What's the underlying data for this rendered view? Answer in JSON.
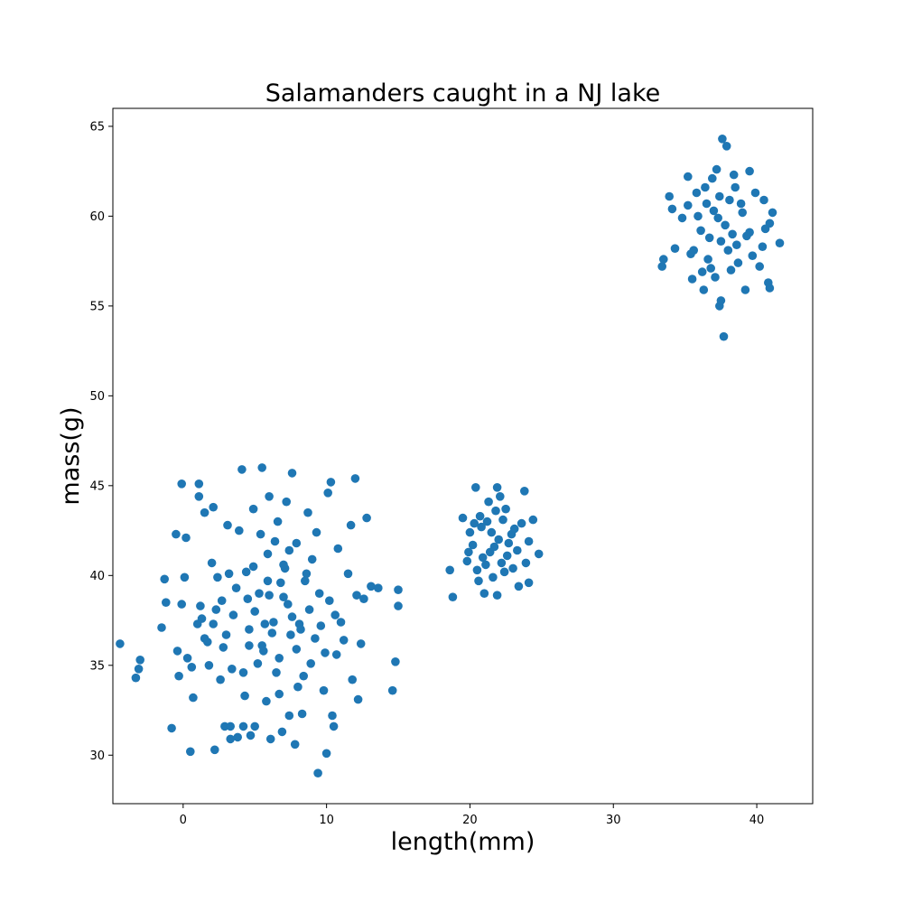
{
  "chart_data": {
    "type": "scatter",
    "title": "Salamanders caught in a NJ lake",
    "xlabel": "length(mm)",
    "ylabel": "mass(g)",
    "xlim": [
      -4.9,
      43.9
    ],
    "ylim": [
      27.3,
      66.0
    ],
    "xticks": [
      0,
      10,
      20,
      30,
      40
    ],
    "yticks": [
      30,
      35,
      40,
      45,
      50,
      55,
      60,
      65
    ],
    "grid": false,
    "marker_color": "#1f77b4",
    "series": [
      {
        "values": [
          [
            -4.4,
            36.2
          ],
          [
            -3.3,
            34.3
          ],
          [
            -3.0,
            35.3
          ],
          [
            -3.1,
            34.8
          ],
          [
            -1.5,
            37.1
          ],
          [
            -1.3,
            39.8
          ],
          [
            -1.2,
            38.5
          ],
          [
            -0.5,
            42.3
          ],
          [
            -0.8,
            31.5
          ],
          [
            -0.4,
            35.8
          ],
          [
            -0.3,
            34.4
          ],
          [
            -0.1,
            38.4
          ],
          [
            -0.1,
            45.1
          ],
          [
            0.1,
            39.9
          ],
          [
            0.2,
            42.1
          ],
          [
            0.3,
            35.4
          ],
          [
            0.5,
            30.2
          ],
          [
            0.7,
            33.2
          ],
          [
            0.6,
            34.9
          ],
          [
            1.0,
            37.3
          ],
          [
            1.1,
            44.4
          ],
          [
            1.1,
            45.1
          ],
          [
            1.3,
            37.6
          ],
          [
            1.2,
            38.3
          ],
          [
            1.5,
            43.5
          ],
          [
            1.5,
            36.5
          ],
          [
            1.8,
            35.0
          ],
          [
            2.0,
            40.7
          ],
          [
            2.1,
            37.3
          ],
          [
            2.1,
            43.8
          ],
          [
            2.2,
            30.3
          ],
          [
            2.4,
            39.9
          ],
          [
            2.6,
            34.2
          ],
          [
            2.7,
            38.6
          ],
          [
            2.8,
            36.0
          ],
          [
            2.9,
            31.6
          ],
          [
            3.1,
            42.8
          ],
          [
            3.3,
            30.9
          ],
          [
            3.3,
            31.6
          ],
          [
            3.4,
            34.8
          ],
          [
            3.5,
            37.8
          ],
          [
            3.8,
            31.0
          ],
          [
            3.9,
            42.5
          ],
          [
            4.1,
            45.9
          ],
          [
            4.2,
            31.6
          ],
          [
            4.3,
            33.3
          ],
          [
            4.4,
            40.2
          ],
          [
            4.5,
            38.7
          ],
          [
            4.6,
            36.1
          ],
          [
            4.7,
            31.1
          ],
          [
            4.9,
            43.7
          ],
          [
            5.0,
            31.6
          ],
          [
            5.3,
            39.0
          ],
          [
            5.4,
            42.3
          ],
          [
            5.5,
            46.0
          ],
          [
            5.6,
            35.8
          ],
          [
            5.8,
            33.0
          ],
          [
            5.9,
            41.2
          ],
          [
            6.0,
            44.4
          ],
          [
            6.1,
            30.9
          ],
          [
            6.3,
            37.4
          ],
          [
            6.6,
            43.0
          ],
          [
            6.7,
            35.4
          ],
          [
            6.9,
            31.3
          ],
          [
            7.0,
            38.8
          ],
          [
            7.1,
            40.4
          ],
          [
            7.2,
            44.1
          ],
          [
            7.4,
            32.2
          ],
          [
            7.5,
            36.7
          ],
          [
            7.6,
            45.7
          ],
          [
            7.8,
            30.6
          ],
          [
            7.9,
            41.8
          ],
          [
            8.1,
            37.3
          ],
          [
            8.3,
            32.3
          ],
          [
            8.5,
            39.7
          ],
          [
            8.7,
            43.5
          ],
          [
            8.9,
            35.1
          ],
          [
            9.0,
            40.9
          ],
          [
            9.3,
            42.4
          ],
          [
            9.4,
            29.0
          ],
          [
            9.6,
            37.2
          ],
          [
            9.8,
            33.6
          ],
          [
            10.0,
            30.1
          ],
          [
            10.1,
            44.6
          ],
          [
            10.3,
            45.2
          ],
          [
            10.4,
            32.2
          ],
          [
            10.5,
            31.6
          ],
          [
            10.6,
            37.8
          ],
          [
            10.8,
            41.5
          ],
          [
            11.2,
            36.4
          ],
          [
            11.5,
            40.1
          ],
          [
            11.7,
            42.8
          ],
          [
            11.8,
            34.2
          ],
          [
            12.0,
            45.4
          ],
          [
            12.2,
            33.1
          ],
          [
            12.4,
            36.2
          ],
          [
            12.6,
            38.7
          ],
          [
            12.8,
            43.2
          ],
          [
            13.1,
            39.4
          ],
          [
            13.6,
            39.3
          ],
          [
            14.6,
            33.6
          ],
          [
            14.8,
            35.2
          ],
          [
            15.0,
            39.2
          ],
          [
            15.0,
            38.3
          ],
          [
            5.0,
            38.0
          ],
          [
            6.2,
            36.8
          ],
          [
            7.3,
            38.4
          ],
          [
            8.2,
            37.0
          ],
          [
            6.8,
            39.6
          ],
          [
            5.7,
            37.3
          ],
          [
            7.9,
            35.9
          ],
          [
            8.8,
            38.1
          ],
          [
            4.6,
            37.0
          ],
          [
            6.5,
            34.6
          ],
          [
            9.2,
            36.5
          ],
          [
            3.7,
            39.3
          ],
          [
            10.2,
            38.6
          ],
          [
            7.0,
            40.6
          ],
          [
            5.2,
            35.1
          ],
          [
            8.4,
            34.4
          ],
          [
            6.0,
            38.9
          ],
          [
            3.0,
            36.7
          ],
          [
            9.9,
            35.7
          ],
          [
            7.6,
            37.7
          ],
          [
            4.9,
            40.5
          ],
          [
            11.0,
            37.4
          ],
          [
            2.3,
            38.1
          ],
          [
            6.7,
            33.4
          ],
          [
            8.6,
            40.1
          ],
          [
            5.5,
            36.1
          ],
          [
            7.4,
            41.4
          ],
          [
            9.5,
            39.0
          ],
          [
            4.2,
            34.6
          ],
          [
            10.7,
            35.6
          ],
          [
            6.4,
            41.9
          ],
          [
            3.2,
            40.1
          ],
          [
            8.0,
            33.8
          ],
          [
            5.9,
            39.7
          ],
          [
            12.1,
            38.9
          ],
          [
            1.7,
            36.3
          ],
          [
            20.2,
            41.7
          ],
          [
            20.8,
            42.7
          ],
          [
            21.4,
            41.3
          ],
          [
            22.0,
            42.0
          ],
          [
            22.6,
            41.1
          ],
          [
            21.1,
            40.6
          ],
          [
            22.3,
            43.1
          ],
          [
            20.5,
            40.3
          ],
          [
            21.8,
            43.6
          ],
          [
            22.9,
            42.3
          ],
          [
            23.3,
            41.4
          ],
          [
            20.0,
            42.4
          ],
          [
            21.6,
            39.9
          ],
          [
            22.4,
            40.2
          ],
          [
            23.6,
            42.9
          ],
          [
            19.8,
            40.8
          ],
          [
            20.7,
            43.3
          ],
          [
            21.3,
            44.1
          ],
          [
            22.1,
            44.4
          ],
          [
            23.0,
            40.4
          ],
          [
            24.1,
            41.9
          ],
          [
            19.5,
            43.2
          ],
          [
            24.4,
            43.1
          ],
          [
            24.8,
            41.2
          ],
          [
            18.6,
            40.3
          ],
          [
            18.8,
            38.8
          ],
          [
            20.4,
            44.9
          ],
          [
            21.9,
            44.9
          ],
          [
            21.0,
            39.0
          ],
          [
            21.9,
            38.9
          ],
          [
            23.4,
            39.4
          ],
          [
            23.8,
            44.7
          ],
          [
            24.1,
            39.6
          ],
          [
            21.5,
            42.4
          ],
          [
            22.7,
            41.8
          ],
          [
            20.9,
            41.0
          ],
          [
            22.2,
            40.7
          ],
          [
            21.2,
            43.0
          ],
          [
            23.1,
            42.6
          ],
          [
            19.9,
            41.3
          ],
          [
            20.6,
            39.7
          ],
          [
            23.9,
            40.7
          ],
          [
            21.7,
            41.6
          ],
          [
            22.5,
            43.7
          ],
          [
            20.3,
            42.9
          ],
          [
            36.1,
            59.2
          ],
          [
            37.0,
            60.3
          ],
          [
            37.8,
            59.5
          ],
          [
            38.6,
            58.4
          ],
          [
            36.6,
            57.6
          ],
          [
            37.4,
            61.1
          ],
          [
            38.9,
            60.7
          ],
          [
            35.6,
            58.1
          ],
          [
            39.5,
            59.1
          ],
          [
            36.4,
            61.6
          ],
          [
            38.2,
            57.0
          ],
          [
            37.1,
            56.6
          ],
          [
            39.9,
            61.3
          ],
          [
            35.2,
            60.6
          ],
          [
            40.4,
            58.3
          ],
          [
            34.8,
            59.9
          ],
          [
            36.9,
            62.1
          ],
          [
            38.4,
            62.3
          ],
          [
            40.9,
            59.6
          ],
          [
            34.3,
            58.2
          ],
          [
            37.6,
            64.3
          ],
          [
            37.9,
            63.9
          ],
          [
            37.7,
            53.3
          ],
          [
            37.4,
            55.0
          ],
          [
            37.5,
            55.3
          ],
          [
            33.4,
            57.2
          ],
          [
            33.5,
            57.6
          ],
          [
            33.9,
            61.1
          ],
          [
            41.6,
            58.5
          ],
          [
            41.1,
            60.2
          ],
          [
            40.9,
            56.0
          ],
          [
            40.8,
            56.3
          ],
          [
            35.2,
            62.2
          ],
          [
            35.5,
            56.5
          ],
          [
            36.3,
            55.9
          ],
          [
            39.2,
            55.9
          ],
          [
            39.5,
            62.5
          ],
          [
            40.5,
            60.9
          ],
          [
            34.1,
            60.4
          ],
          [
            36.7,
            58.8
          ],
          [
            38.0,
            58.1
          ],
          [
            37.3,
            59.9
          ],
          [
            39.0,
            60.2
          ],
          [
            35.9,
            60.0
          ],
          [
            38.7,
            57.4
          ],
          [
            36.2,
            56.9
          ],
          [
            39.7,
            57.8
          ],
          [
            37.2,
            62.6
          ],
          [
            38.5,
            61.6
          ],
          [
            35.8,
            61.3
          ],
          [
            40.2,
            57.2
          ],
          [
            36.8,
            57.1
          ],
          [
            38.3,
            59.0
          ],
          [
            37.5,
            58.6
          ],
          [
            39.3,
            58.9
          ],
          [
            36.5,
            60.7
          ],
          [
            38.1,
            60.9
          ],
          [
            35.4,
            57.9
          ],
          [
            40.6,
            59.3
          ]
        ]
      }
    ]
  }
}
